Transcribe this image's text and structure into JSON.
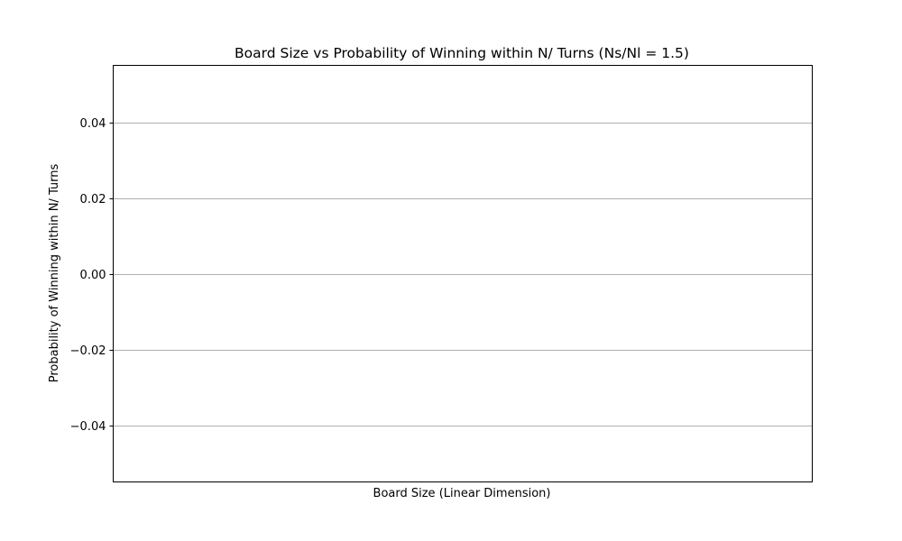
{
  "chart_data": {
    "type": "line",
    "title": "Board Size vs Probability of Winning within N/ Turns (Ns/Nl = 1.5)",
    "xlabel": "Board Size (Linear Dimension)",
    "ylabel": "Probability of Winning within N/ Turns",
    "ylim": [
      -0.055,
      0.055
    ],
    "yticks": [
      -0.04,
      -0.02,
      0.0,
      0.02,
      0.04
    ],
    "ytick_labels": [
      "−0.04",
      "−0.02",
      "0.00",
      "0.02",
      "0.04"
    ],
    "xticks": [],
    "grid": "horizontal",
    "series": []
  }
}
